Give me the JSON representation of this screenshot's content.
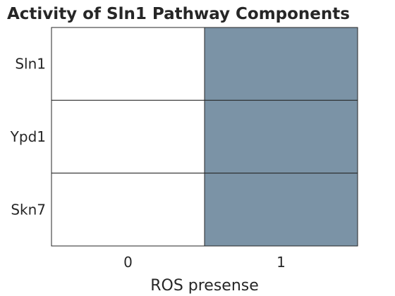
{
  "chart_data": {
    "type": "heatmap",
    "title": "Activity of Sln1 Pathway Components",
    "xlabel": "ROS presense",
    "ylabel": "",
    "x_categories": [
      "0",
      "1"
    ],
    "y_categories": [
      "Sln1",
      "Ypd1",
      "Skn7"
    ],
    "values": [
      [
        0,
        1
      ],
      [
        0,
        1
      ],
      [
        0,
        1
      ]
    ],
    "colors": {
      "low": "#ffffff",
      "high": "#7b93a6",
      "gridline": "#262626"
    },
    "colorbar": false
  }
}
